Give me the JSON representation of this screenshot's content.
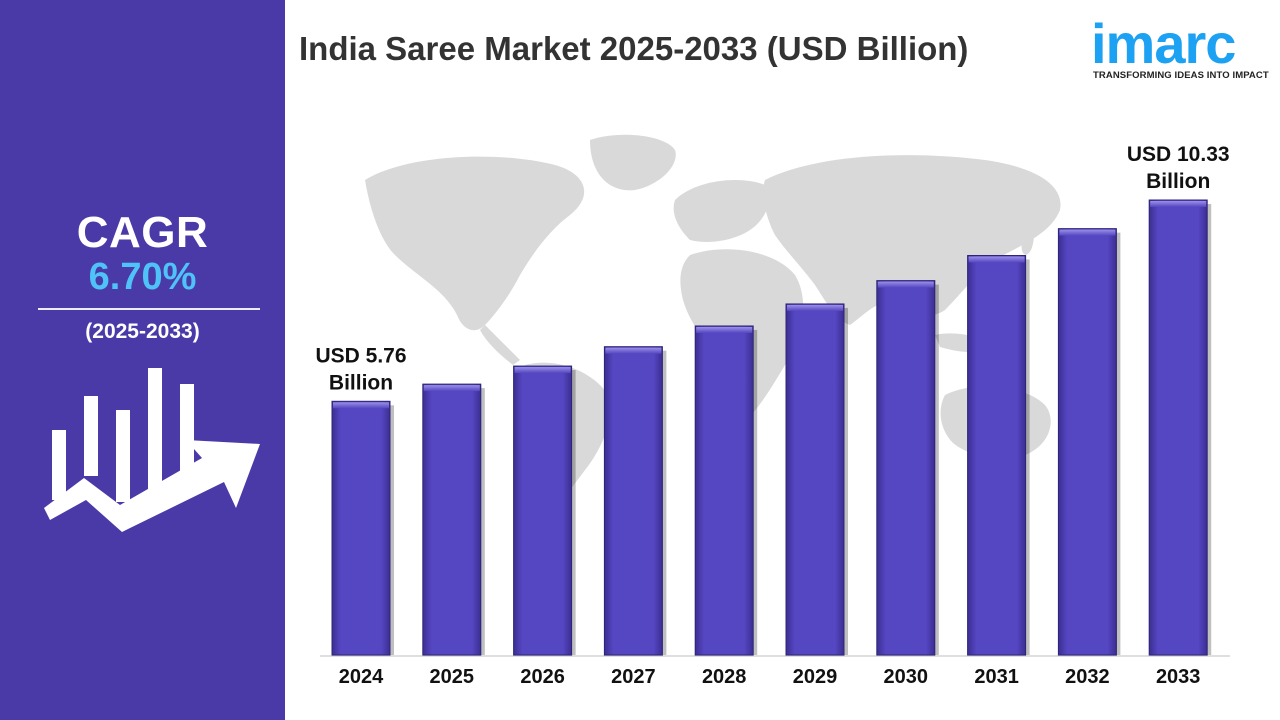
{
  "sidebar": {
    "cagr_label": "CAGR",
    "cagr_value": "6.70%",
    "cagr_period": "(2025-2033)",
    "icon": "bar-growth-arrow-icon"
  },
  "header": {
    "title": "India Saree Market 2025-2033 (USD Billion)"
  },
  "logo": {
    "word": "imarc",
    "tagline": "TRANSFORMING IDEAS INTO IMPACT"
  },
  "colors": {
    "sidebar_bg": "#4a3aa8",
    "bar_fill": "#5443bf",
    "cagr_accent": "#4fc3f7",
    "logo_blue": "#1da1f2",
    "map_gray": "#d9d9d9"
  },
  "chart_data": {
    "type": "bar",
    "title": "India Saree Market 2025-2033 (USD Billion)",
    "categories": [
      "2024",
      "2025",
      "2026",
      "2027",
      "2028",
      "2029",
      "2030",
      "2031",
      "2032",
      "2033"
    ],
    "values": [
      5.76,
      6.15,
      6.56,
      7.0,
      7.47,
      7.97,
      8.5,
      9.07,
      9.68,
      10.33
    ],
    "annotations": [
      {
        "category": "2024",
        "lines": [
          "USD 5.76",
          "Billion"
        ]
      },
      {
        "category": "2033",
        "lines": [
          "USD 10.33",
          "Billion"
        ]
      }
    ],
    "xlabel": "",
    "ylabel": "",
    "grid": false,
    "legend": "none"
  }
}
